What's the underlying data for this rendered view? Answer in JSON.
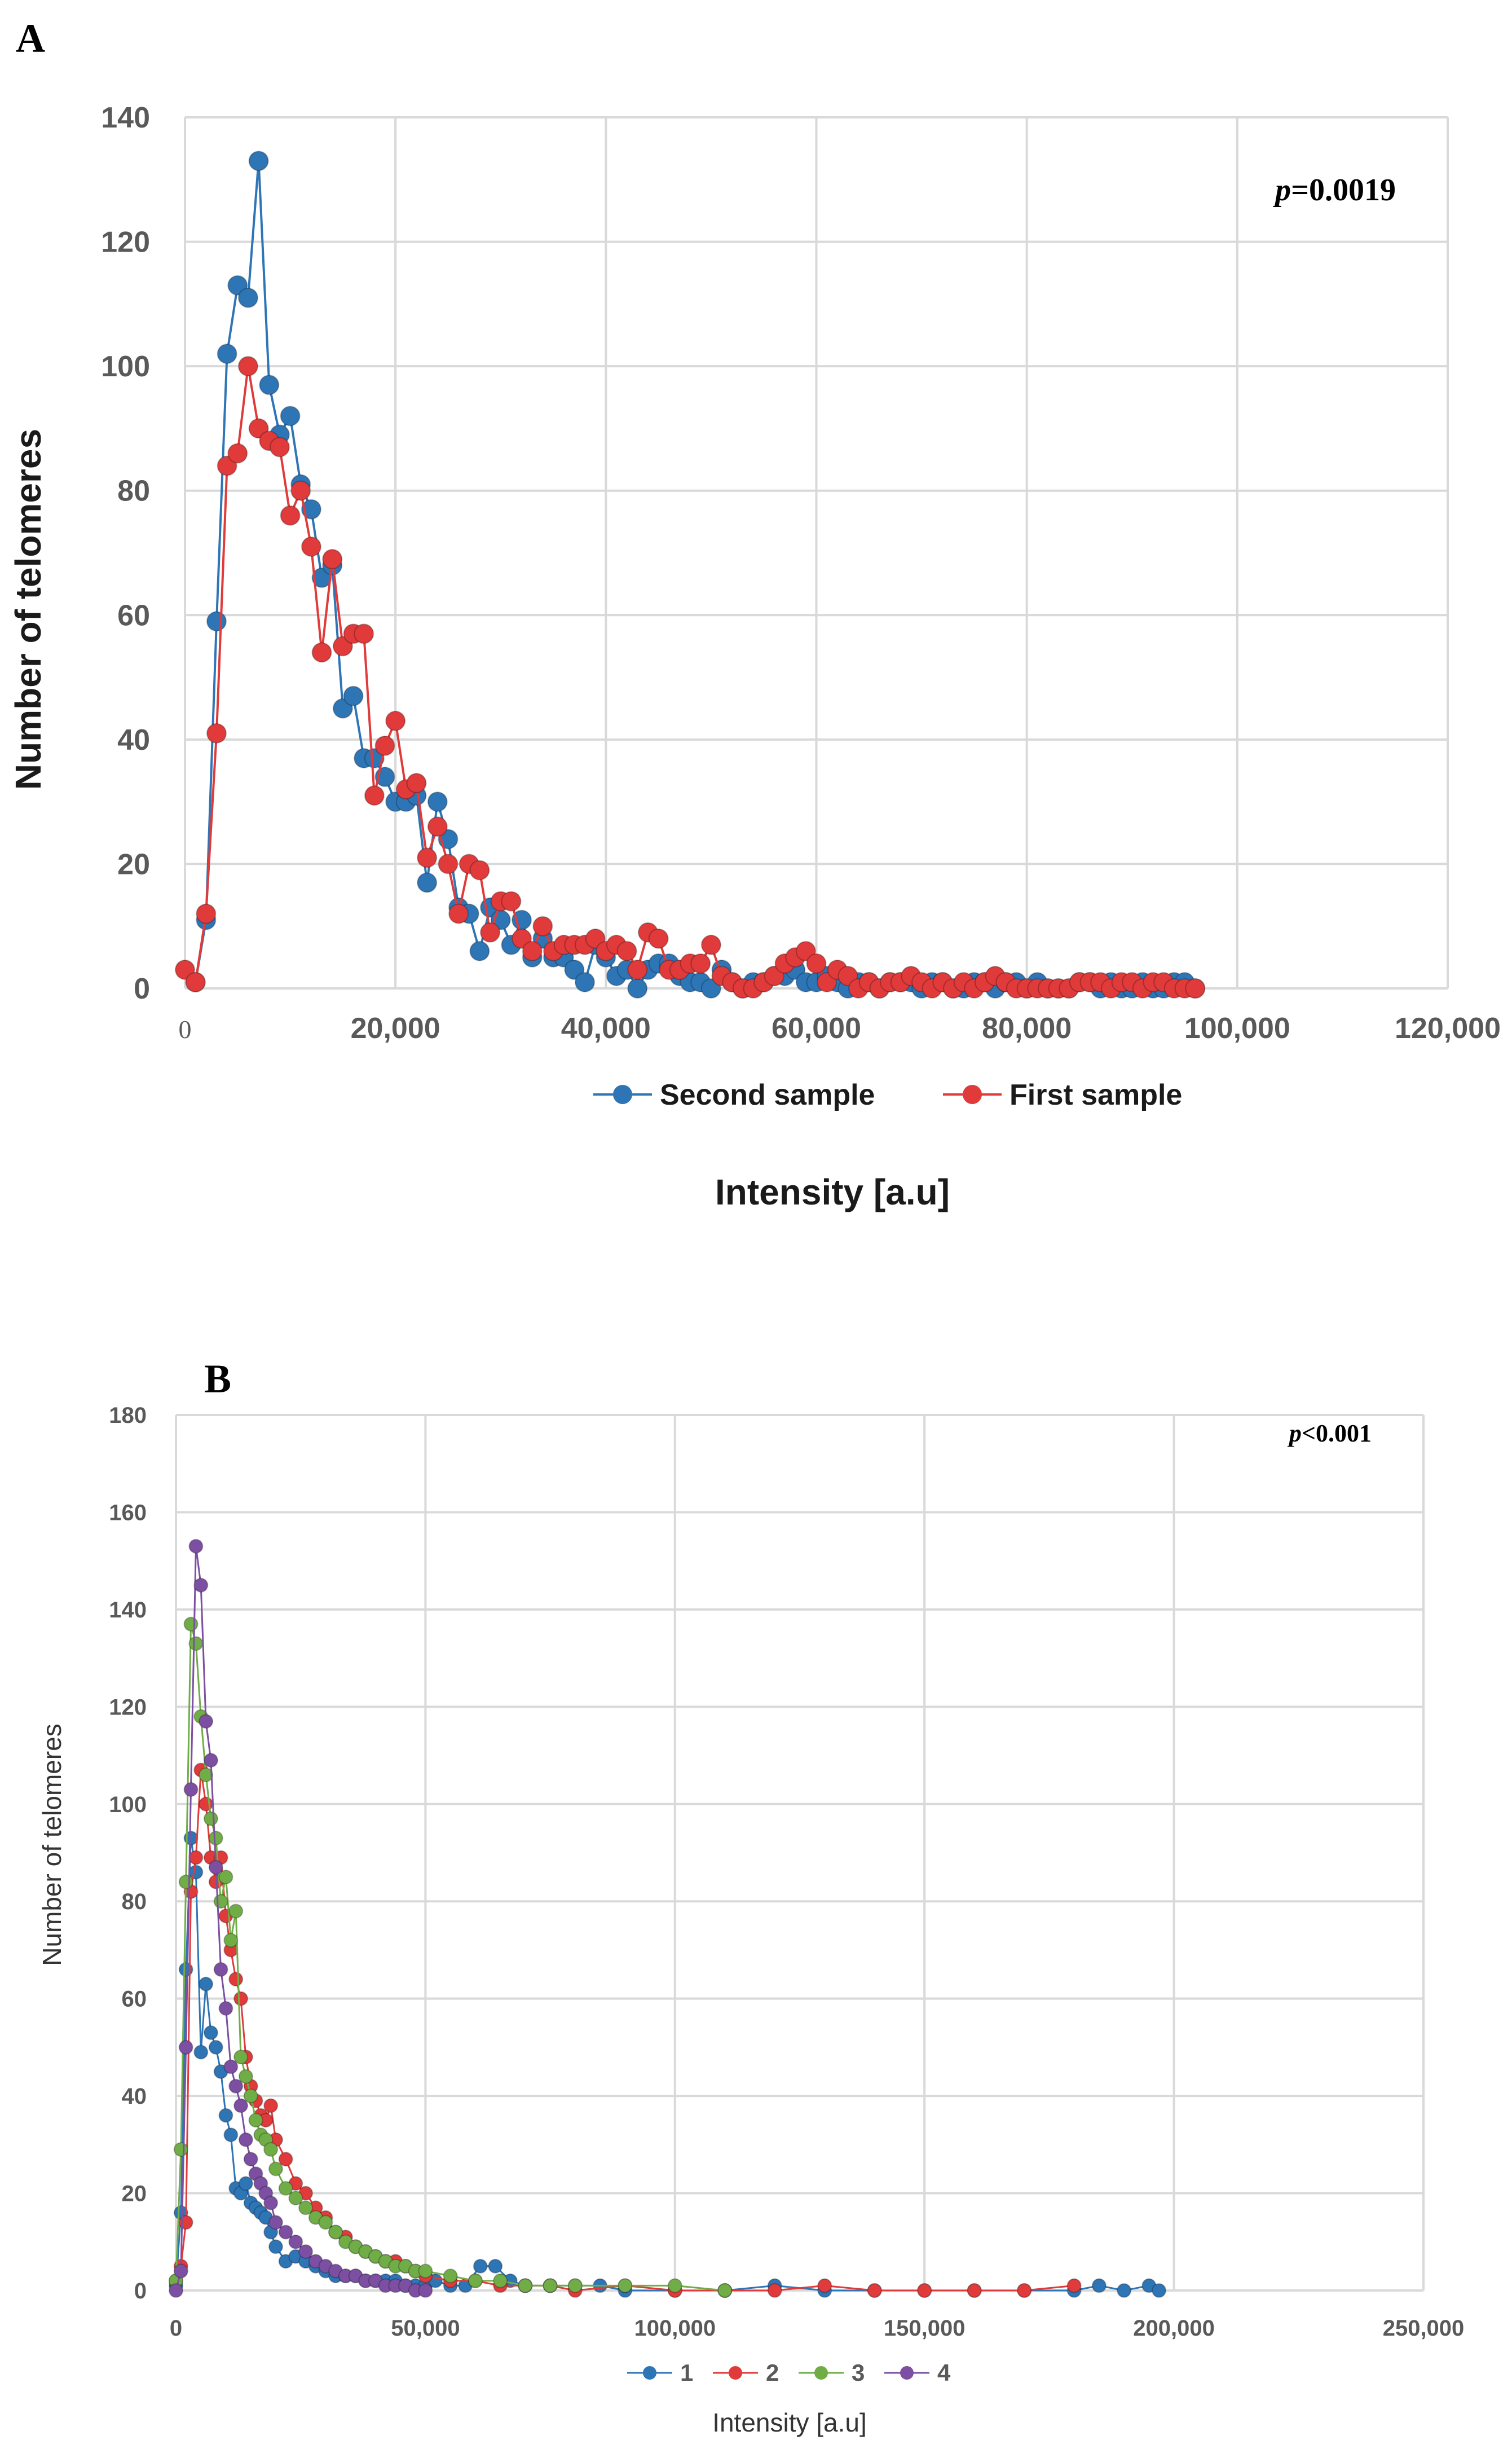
{
  "chart_data": [
    {
      "panel_label": "A",
      "type": "line",
      "annotation": "=0.0019",
      "annotation_italic": "p",
      "xlabel": "Intensity [a.u]",
      "ylabel": "Number of telomeres",
      "xlim": [
        0,
        120000
      ],
      "ylim": [
        0,
        140
      ],
      "x_ticks": [
        "0",
        "20,000",
        "40,000",
        "60,000",
        "80,000",
        "100,000",
        "120,000"
      ],
      "y_ticks": [
        "0",
        "20",
        "40",
        "60",
        "80",
        "100",
        "120",
        "140"
      ],
      "grid": true,
      "legend": "bottom",
      "series": [
        {
          "name": "Second sample",
          "color": "#2e75b6",
          "x": [
            1000,
            2000,
            3000,
            4000,
            5000,
            6000,
            7000,
            8000,
            9000,
            10000,
            11000,
            12000,
            13000,
            14000,
            15000,
            16000,
            17000,
            18000,
            19000,
            20000,
            21000,
            22000,
            23000,
            24000,
            25000,
            26000,
            27000,
            28000,
            29000,
            30000,
            31000,
            32000,
            33000,
            34000,
            35000,
            36000,
            37000,
            38000,
            39000,
            40000,
            41000,
            42000,
            43000,
            44000,
            45000,
            46000,
            47000,
            48000,
            49000,
            50000,
            51000,
            52000,
            53000,
            54000,
            55000,
            56000,
            57000,
            58000,
            59000,
            60000,
            61000,
            62000,
            63000,
            64000,
            65000,
            66000,
            67000,
            68000,
            69000,
            70000,
            71000,
            72000,
            73000,
            74000,
            75000,
            76000,
            77000,
            78000,
            79000,
            80000,
            81000,
            82000,
            83000,
            84000,
            85000,
            86000,
            87000,
            88000,
            89000,
            90000,
            91000,
            92000,
            93000,
            94000,
            95000,
            96000
          ],
          "y": [
            1,
            11,
            59,
            102,
            113,
            111,
            133,
            97,
            89,
            92,
            81,
            77,
            66,
            68,
            45,
            47,
            37,
            37,
            34,
            30,
            30,
            31,
            17,
            30,
            24,
            13,
            12,
            6,
            13,
            11,
            7,
            11,
            5,
            8,
            5,
            5,
            3,
            1,
            7,
            5,
            2,
            3,
            0,
            3,
            4,
            4,
            2,
            1,
            1,
            0,
            3,
            1,
            0,
            1,
            1,
            2,
            2,
            3,
            1,
            1,
            2,
            1,
            0,
            1,
            1,
            0,
            1,
            1,
            1,
            0,
            1,
            1,
            0,
            0,
            1,
            1,
            0,
            1,
            1,
            0,
            1,
            0,
            0,
            0,
            1,
            1,
            0,
            1,
            0,
            0,
            1,
            0,
            0,
            1,
            1,
            0
          ]
        },
        {
          "name": "First sample",
          "color": "#e03a3a",
          "x": [
            0,
            1000,
            2000,
            3000,
            4000,
            5000,
            6000,
            7000,
            8000,
            9000,
            10000,
            11000,
            12000,
            13000,
            14000,
            15000,
            16000,
            17000,
            18000,
            19000,
            20000,
            21000,
            22000,
            23000,
            24000,
            25000,
            26000,
            27000,
            28000,
            29000,
            30000,
            31000,
            32000,
            33000,
            34000,
            35000,
            36000,
            37000,
            38000,
            39000,
            40000,
            41000,
            42000,
            43000,
            44000,
            45000,
            46000,
            47000,
            48000,
            49000,
            50000,
            51000,
            52000,
            53000,
            54000,
            55000,
            56000,
            57000,
            58000,
            59000,
            60000,
            61000,
            62000,
            63000,
            64000,
            65000,
            66000,
            67000,
            68000,
            69000,
            70000,
            71000,
            72000,
            73000,
            74000,
            75000,
            76000,
            77000,
            78000,
            79000,
            80000,
            81000,
            82000,
            83000,
            84000,
            85000,
            86000,
            87000,
            88000,
            89000,
            90000,
            91000,
            92000,
            93000,
            94000,
            95000,
            96000
          ],
          "y": [
            3,
            1,
            12,
            41,
            84,
            86,
            100,
            90,
            88,
            87,
            76,
            80,
            71,
            54,
            69,
            55,
            57,
            57,
            31,
            39,
            43,
            32,
            33,
            21,
            26,
            20,
            12,
            20,
            19,
            9,
            14,
            14,
            8,
            6,
            10,
            6,
            7,
            7,
            7,
            8,
            6,
            7,
            6,
            3,
            9,
            8,
            3,
            3,
            4,
            4,
            7,
            2,
            1,
            0,
            0,
            1,
            2,
            4,
            5,
            6,
            4,
            1,
            3,
            2,
            0,
            1,
            0,
            1,
            1,
            2,
            1,
            0,
            1,
            0,
            1,
            0,
            1,
            2,
            1,
            0,
            0,
            0,
            0,
            0,
            0,
            1,
            1,
            1,
            0,
            1,
            1,
            0,
            1,
            1,
            0,
            0,
            0
          ]
        }
      ]
    },
    {
      "panel_label": "B",
      "type": "line",
      "annotation": "<0.001",
      "annotation_italic": "p",
      "xlabel": "Intensity [a.u]",
      "ylabel": "Number of telomeres",
      "xlim": [
        0,
        250000
      ],
      "ylim": [
        0,
        180
      ],
      "x_ticks": [
        "0",
        "50,000",
        "100,000",
        "150,000",
        "200,000",
        "250,000"
      ],
      "y_ticks": [
        "0",
        "20",
        "40",
        "60",
        "80",
        "100",
        "120",
        "140",
        "160",
        "180"
      ],
      "grid": true,
      "legend": "bottom",
      "series": [
        {
          "name": "1",
          "color": "#2e75b6",
          "x": [
            0,
            1000,
            2000,
            3000,
            4000,
            5000,
            6000,
            7000,
            8000,
            9000,
            10000,
            11000,
            12000,
            13000,
            14000,
            15000,
            16000,
            17000,
            18000,
            19000,
            20000,
            22000,
            24000,
            26000,
            28000,
            30000,
            32000,
            34000,
            36000,
            38000,
            40000,
            42000,
            44000,
            46000,
            48000,
            50000,
            52000,
            55000,
            58000,
            61000,
            64000,
            67000,
            70000,
            75000,
            80000,
            85000,
            90000,
            100000,
            110000,
            120000,
            130000,
            140000,
            150000,
            160000,
            170000,
            180000,
            185000,
            190000,
            195000,
            197000
          ],
          "y": [
            1,
            16,
            66,
            93,
            86,
            49,
            63,
            53,
            50,
            45,
            36,
            32,
            21,
            20,
            22,
            18,
            17,
            16,
            15,
            12,
            9,
            6,
            7,
            6,
            5,
            4,
            3,
            3,
            3,
            2,
            2,
            2,
            2,
            1,
            1,
            1,
            2,
            1,
            1,
            5,
            5,
            2,
            1,
            1,
            1,
            1,
            0,
            0,
            0,
            1,
            0,
            0,
            0,
            0,
            0,
            0,
            1,
            0,
            1,
            0
          ]
        },
        {
          "name": "2",
          "color": "#e03a3a",
          "x": [
            0,
            1000,
            2000,
            3000,
            4000,
            5000,
            6000,
            7000,
            8000,
            9000,
            10000,
            11000,
            12000,
            13000,
            14000,
            15000,
            16000,
            17000,
            18000,
            19000,
            20000,
            22000,
            24000,
            26000,
            28000,
            30000,
            32000,
            34000,
            36000,
            38000,
            40000,
            42000,
            44000,
            46000,
            48000,
            50000,
            55000,
            60000,
            65000,
            70000,
            75000,
            80000,
            90000,
            100000,
            110000,
            120000,
            130000,
            140000,
            150000,
            160000,
            170000,
            180000
          ],
          "y": [
            2,
            5,
            14,
            82,
            89,
            107,
            100,
            89,
            84,
            89,
            77,
            70,
            64,
            60,
            48,
            42,
            39,
            36,
            35,
            38,
            31,
            27,
            22,
            20,
            17,
            15,
            12,
            11,
            9,
            8,
            7,
            6,
            6,
            5,
            4,
            3,
            2,
            2,
            1,
            1,
            1,
            0,
            1,
            0,
            0,
            0,
            1,
            0,
            0,
            0,
            0,
            1
          ]
        },
        {
          "name": "3",
          "color": "#70ad47",
          "x": [
            0,
            1000,
            2000,
            3000,
            4000,
            5000,
            6000,
            7000,
            8000,
            9000,
            10000,
            11000,
            12000,
            13000,
            14000,
            15000,
            16000,
            17000,
            18000,
            19000,
            20000,
            22000,
            24000,
            26000,
            28000,
            30000,
            32000,
            34000,
            36000,
            38000,
            40000,
            42000,
            44000,
            46000,
            48000,
            50000,
            55000,
            60000,
            65000,
            70000,
            75000,
            80000,
            90000,
            100000,
            110000
          ],
          "y": [
            2,
            29,
            84,
            137,
            133,
            118,
            106,
            97,
            93,
            80,
            85,
            72,
            78,
            48,
            44,
            40,
            35,
            32,
            31,
            29,
            25,
            21,
            19,
            17,
            15,
            14,
            12,
            10,
            9,
            8,
            7,
            6,
            5,
            5,
            4,
            4,
            3,
            2,
            2,
            1,
            1,
            1,
            1,
            1,
            0
          ]
        },
        {
          "name": "4",
          "color": "#7d4fa3",
          "x": [
            0,
            1000,
            2000,
            3000,
            4000,
            5000,
            6000,
            7000,
            8000,
            9000,
            10000,
            11000,
            12000,
            13000,
            14000,
            15000,
            16000,
            17000,
            18000,
            19000,
            20000,
            22000,
            24000,
            26000,
            28000,
            30000,
            32000,
            34000,
            36000,
            38000,
            40000,
            42000,
            44000,
            46000,
            48000,
            50000
          ],
          "y": [
            0,
            4,
            50,
            103,
            153,
            145,
            117,
            109,
            87,
            66,
            58,
            46,
            42,
            38,
            31,
            27,
            24,
            22,
            20,
            18,
            14,
            12,
            10,
            8,
            6,
            5,
            4,
            3,
            3,
            2,
            2,
            1,
            1,
            1,
            0,
            0
          ]
        }
      ]
    }
  ]
}
